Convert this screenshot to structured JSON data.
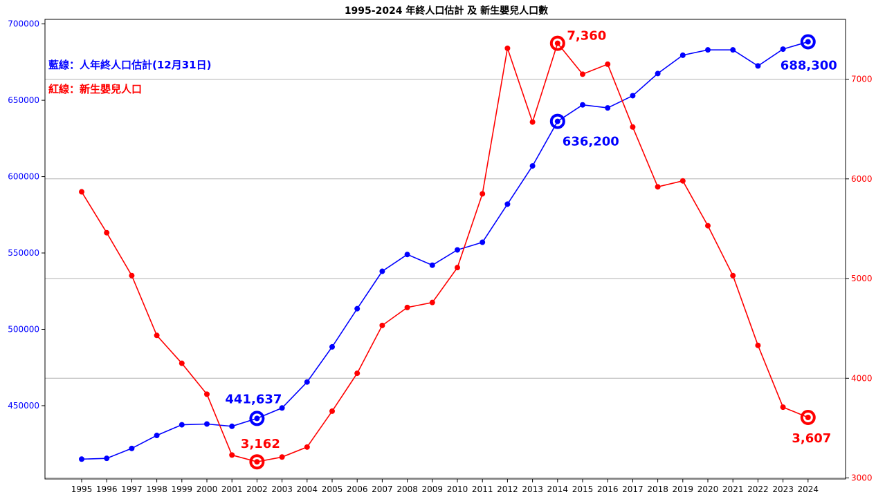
{
  "chart_data": {
    "type": "line",
    "title": "1995-2024 年終人口估計 及 新生嬰兒人口數",
    "legend": {
      "blue": "藍線：人年終人口估計(12月31日)",
      "red": "紅線：新生嬰兒人口"
    },
    "x": [
      "1995",
      "1996",
      "1997",
      "1998",
      "1999",
      "2000",
      "2001",
      "2002",
      "2003",
      "2004",
      "2005",
      "2006",
      "2007",
      "2008",
      "2009",
      "2010",
      "2011",
      "2012",
      "2013",
      "2014",
      "2015",
      "2016",
      "2017",
      "2018",
      "2019",
      "2020",
      "2021",
      "2022",
      "2023",
      "2024"
    ],
    "left_axis": {
      "ylim": [
        402000,
        703000
      ],
      "ticks": [
        450000,
        500000,
        550000,
        600000,
        650000,
        700000
      ],
      "tick_labels": [
        "450000",
        "500000",
        "550000",
        "600000",
        "650000",
        "700000"
      ],
      "color": "#0000ff"
    },
    "right_axis": {
      "ylim": [
        2990,
        7600
      ],
      "ticks": [
        3000,
        4000,
        5000,
        6000,
        7000
      ],
      "tick_labels": [
        "3000",
        "4000",
        "5000",
        "6000",
        "7000"
      ],
      "color": "#ff0000"
    },
    "grid": "horizontal",
    "series": [
      {
        "axis": "left",
        "color": "#0000ff",
        "values": [
          415000,
          415500,
          422000,
          430500,
          437500,
          438000,
          436500,
          441637,
          448500,
          465500,
          488500,
          513500,
          538000,
          549000,
          542000,
          552000,
          557000,
          582000,
          607000,
          636200,
          647000,
          645000,
          653000,
          667500,
          679500,
          683000,
          683000,
          672500,
          683500,
          688300
        ]
      },
      {
        "axis": "right",
        "color": "#ff0000",
        "values": [
          5870,
          5460,
          5030,
          4430,
          4150,
          3840,
          3230,
          3162,
          3210,
          3310,
          3670,
          4050,
          4530,
          4710,
          4760,
          5110,
          5850,
          7310,
          6570,
          7360,
          7050,
          7150,
          6520,
          5920,
          5980,
          5530,
          5030,
          4330,
          3710,
          3607
        ]
      }
    ],
    "annotations": [
      {
        "label": "441,637",
        "series": 0,
        "index": 7,
        "color": "#0000ff"
      },
      {
        "label": "636,200",
        "series": 0,
        "index": 19,
        "color": "#0000ff"
      },
      {
        "label": "688,300",
        "series": 0,
        "index": 29,
        "color": "#0000ff"
      },
      {
        "label": "3,162",
        "series": 1,
        "index": 7,
        "color": "#ff0000"
      },
      {
        "label": "7,360",
        "series": 1,
        "index": 19,
        "color": "#ff0000"
      },
      {
        "label": "3,607",
        "series": 1,
        "index": 29,
        "color": "#ff0000"
      }
    ]
  }
}
